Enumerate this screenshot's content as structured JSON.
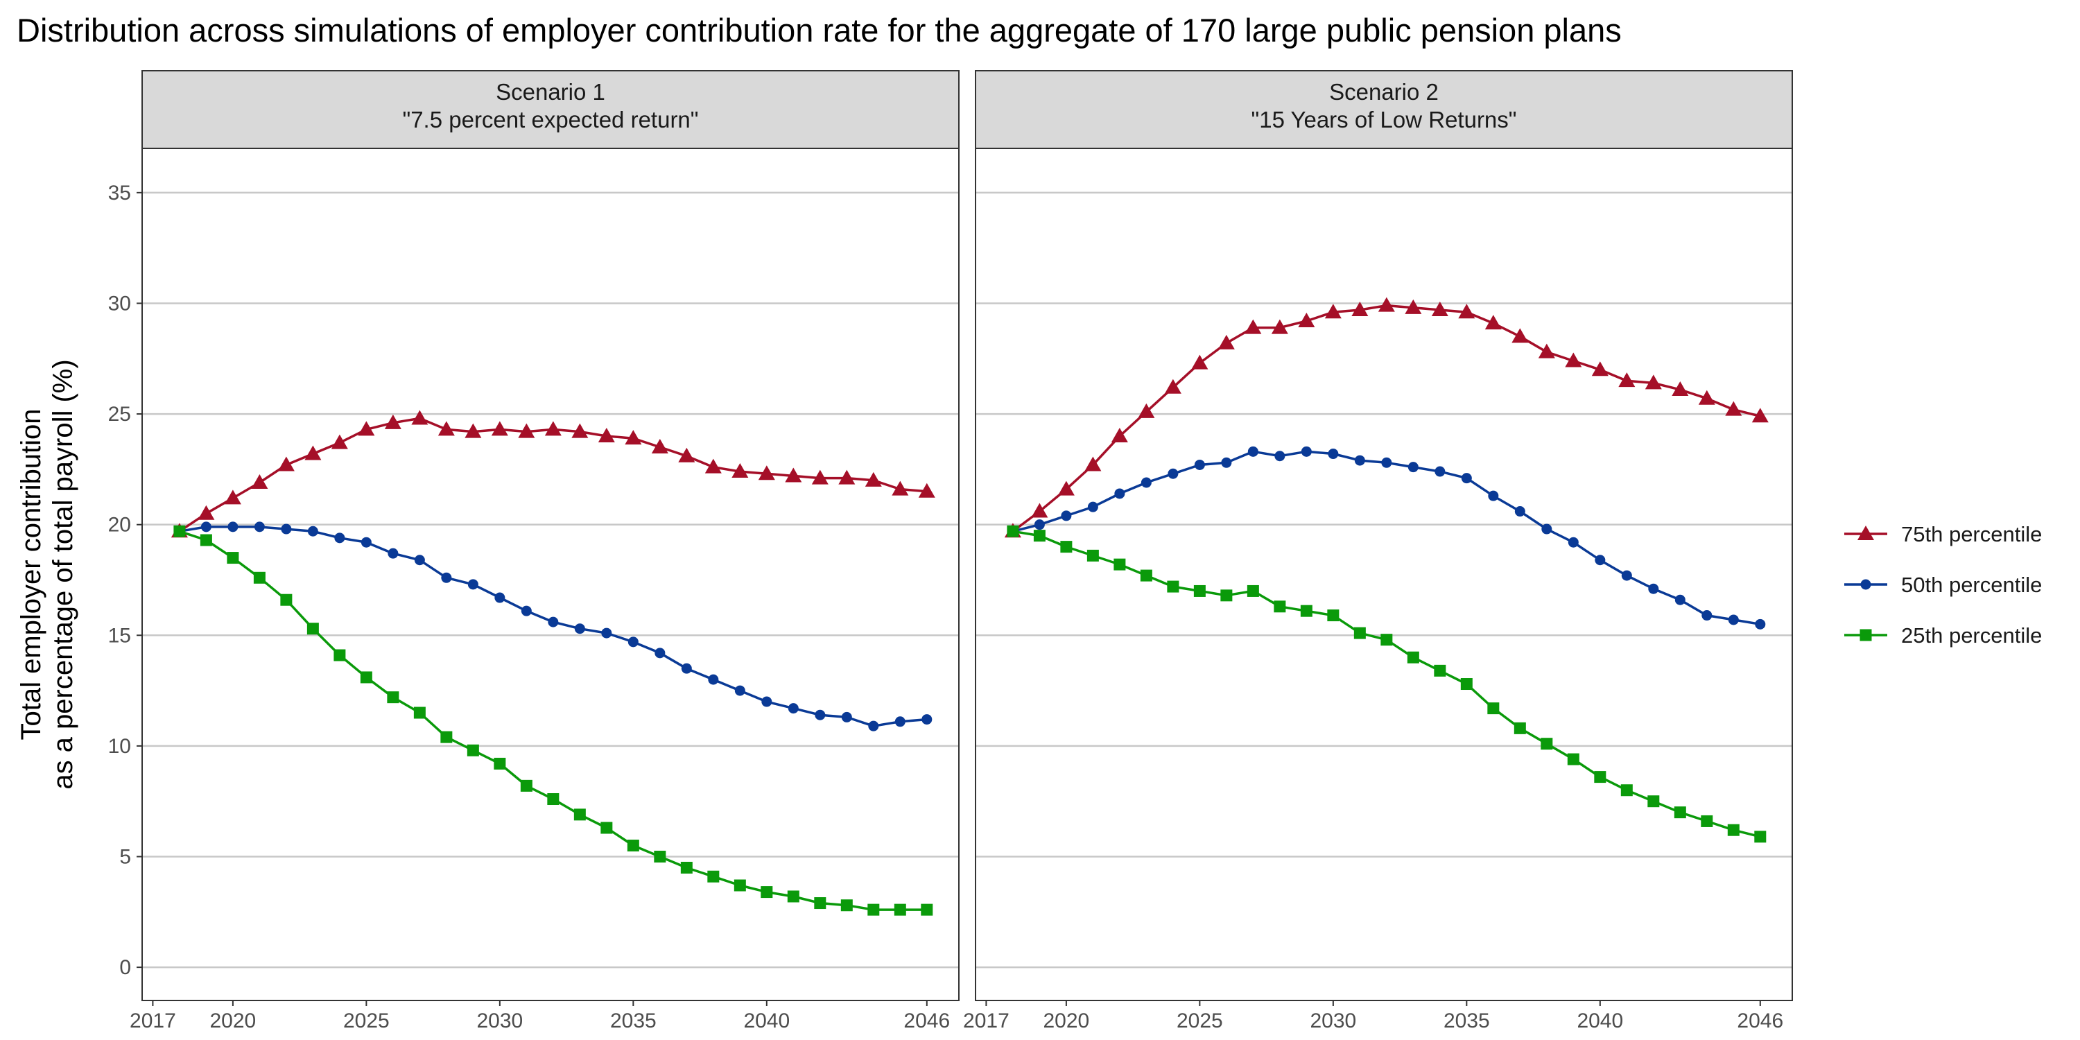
{
  "chart_data": {
    "type": "line",
    "title": "Distribution across simulations of employer contribution rate for the aggregate of 170 large public pension plans",
    "xlabel": "",
    "ylabel": [
      "Total employer contribution",
      "as a percentage of total payroll (%)"
    ],
    "xlim": [
      2016.6,
      2047.2
    ],
    "ylim": [
      -1.5,
      37.0
    ],
    "x_ticks": [
      "2017",
      "2020",
      "2025",
      "2030",
      "2035",
      "2040",
      "2046"
    ],
    "y_ticks": [
      "0",
      "5",
      "10",
      "15",
      "20",
      "25",
      "30",
      "35"
    ],
    "grid": true,
    "legend_position": "right",
    "colors": {
      "p75": "#A50F28",
      "p50": "#0A3A96",
      "p25": "#0A9A0A",
      "grid": "#c8c8c8",
      "strip_bg": "#d9d9d9"
    },
    "x": [
      2018,
      2019,
      2020,
      2021,
      2022,
      2023,
      2024,
      2025,
      2026,
      2027,
      2028,
      2029,
      2030,
      2031,
      2032,
      2033,
      2034,
      2035,
      2036,
      2037,
      2038,
      2039,
      2040,
      2041,
      2042,
      2043,
      2044,
      2045,
      2046
    ],
    "legend": [
      {
        "name": "75th percentile",
        "marker": "triangle",
        "color": "#A50F28"
      },
      {
        "name": "50th percentile",
        "marker": "circle",
        "color": "#0A3A96"
      },
      {
        "name": "25th percentile",
        "marker": "square",
        "color": "#0A9A0A"
      }
    ],
    "panels": [
      {
        "strip": [
          "Scenario 1",
          "\"7.5 percent expected return\""
        ],
        "series": [
          {
            "name": "75th percentile",
            "marker": "triangle",
            "color": "#A50F28",
            "values": [
              19.7,
              20.5,
              21.2,
              21.9,
              22.7,
              23.2,
              23.7,
              24.3,
              24.6,
              24.8,
              24.3,
              24.2,
              24.3,
              24.2,
              24.3,
              24.2,
              24.0,
              23.9,
              23.5,
              23.1,
              22.6,
              22.4,
              22.3,
              22.2,
              22.1,
              22.1,
              22.0,
              21.6,
              21.5
            ]
          },
          {
            "name": "50th percentile",
            "marker": "circle",
            "color": "#0A3A96",
            "values": [
              19.7,
              19.9,
              19.9,
              19.9,
              19.8,
              19.7,
              19.4,
              19.2,
              18.7,
              18.4,
              17.6,
              17.3,
              16.7,
              16.1,
              15.6,
              15.3,
              15.1,
              14.7,
              14.2,
              13.5,
              13.0,
              12.5,
              12.0,
              11.7,
              11.4,
              11.3,
              10.9,
              11.1,
              11.2
            ]
          },
          {
            "name": "25th percentile",
            "marker": "square",
            "color": "#0A9A0A",
            "values": [
              19.7,
              19.3,
              18.5,
              17.6,
              16.6,
              15.3,
              14.1,
              13.1,
              12.2,
              11.5,
              10.4,
              9.8,
              9.2,
              8.2,
              7.6,
              6.9,
              6.3,
              5.5,
              5.0,
              4.5,
              4.1,
              3.7,
              3.4,
              3.2,
              2.9,
              2.8,
              2.6,
              2.6,
              2.6
            ]
          }
        ]
      },
      {
        "strip": [
          "Scenario 2",
          "\"15 Years of Low Returns\""
        ],
        "series": [
          {
            "name": "75th percentile",
            "marker": "triangle",
            "color": "#A50F28",
            "values": [
              19.7,
              20.6,
              21.6,
              22.7,
              24.0,
              25.1,
              26.2,
              27.3,
              28.2,
              28.9,
              28.9,
              29.2,
              29.6,
              29.7,
              29.9,
              29.8,
              29.7,
              29.6,
              29.1,
              28.5,
              27.8,
              27.4,
              27.0,
              26.5,
              26.4,
              26.1,
              25.7,
              25.2,
              24.9
            ]
          },
          {
            "name": "50th percentile",
            "marker": "circle",
            "color": "#0A3A96",
            "values": [
              19.7,
              20.0,
              20.4,
              20.8,
              21.4,
              21.9,
              22.3,
              22.7,
              22.8,
              23.3,
              23.1,
              23.3,
              23.2,
              22.9,
              22.8,
              22.6,
              22.4,
              22.1,
              21.3,
              20.6,
              19.8,
              19.2,
              18.4,
              17.7,
              17.1,
              16.6,
              15.9,
              15.7,
              15.5
            ]
          },
          {
            "name": "25th percentile",
            "marker": "square",
            "color": "#0A9A0A",
            "values": [
              19.7,
              19.5,
              19.0,
              18.6,
              18.2,
              17.7,
              17.2,
              17.0,
              16.8,
              17.0,
              16.3,
              16.1,
              15.9,
              15.1,
              14.8,
              14.0,
              13.4,
              12.8,
              11.7,
              10.8,
              10.1,
              9.4,
              8.6,
              8.0,
              7.5,
              7.0,
              6.6,
              6.2,
              5.9
            ]
          }
        ]
      }
    ]
  }
}
